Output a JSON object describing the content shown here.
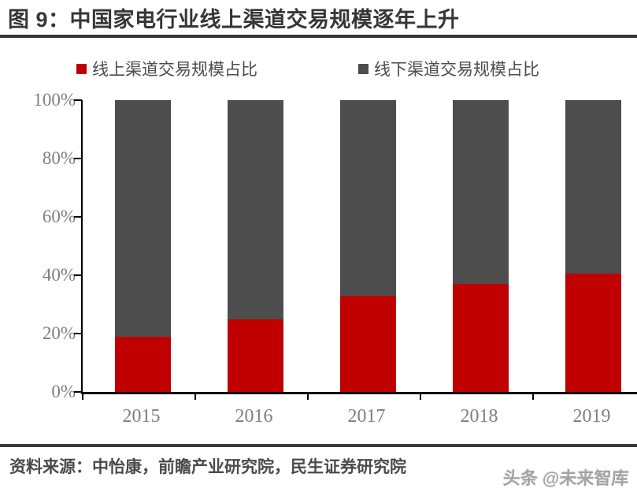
{
  "header": {
    "title": "图 9：中国家电行业线上渠道交易规模逐年上升"
  },
  "legend": [
    {
      "label": "线上渠道交易规模占比",
      "color": "#C00000"
    },
    {
      "label": "线下渠道交易规模占比",
      "color": "#4D4D4D"
    }
  ],
  "chart_data": {
    "type": "bar",
    "stacked": true,
    "title": "中国家电行业线上渠道交易规模逐年上升",
    "categories": [
      "2015",
      "2016",
      "2017",
      "2018",
      "2019"
    ],
    "series": [
      {
        "name": "线上渠道交易规模占比",
        "color": "#C00000",
        "values": [
          19,
          25,
          33,
          37,
          40.5
        ]
      },
      {
        "name": "线下渠道交易规模占比",
        "color": "#4D4D4D",
        "values": [
          81,
          75,
          67,
          63,
          59.5
        ]
      }
    ],
    "xlabel": "",
    "ylabel": "",
    "ylim": [
      0,
      100
    ],
    "y_ticks": [
      "0%",
      "20%",
      "40%",
      "60%",
      "80%",
      "100%"
    ],
    "grid": false,
    "legend_position": "top",
    "axis_color": "#000000",
    "tick_label_color": "#7f7f7f"
  },
  "footer": {
    "source": "资料来源：中怡康，前瞻产业研究院，民生证券研究院",
    "watermark": "头条 @未来智库"
  }
}
